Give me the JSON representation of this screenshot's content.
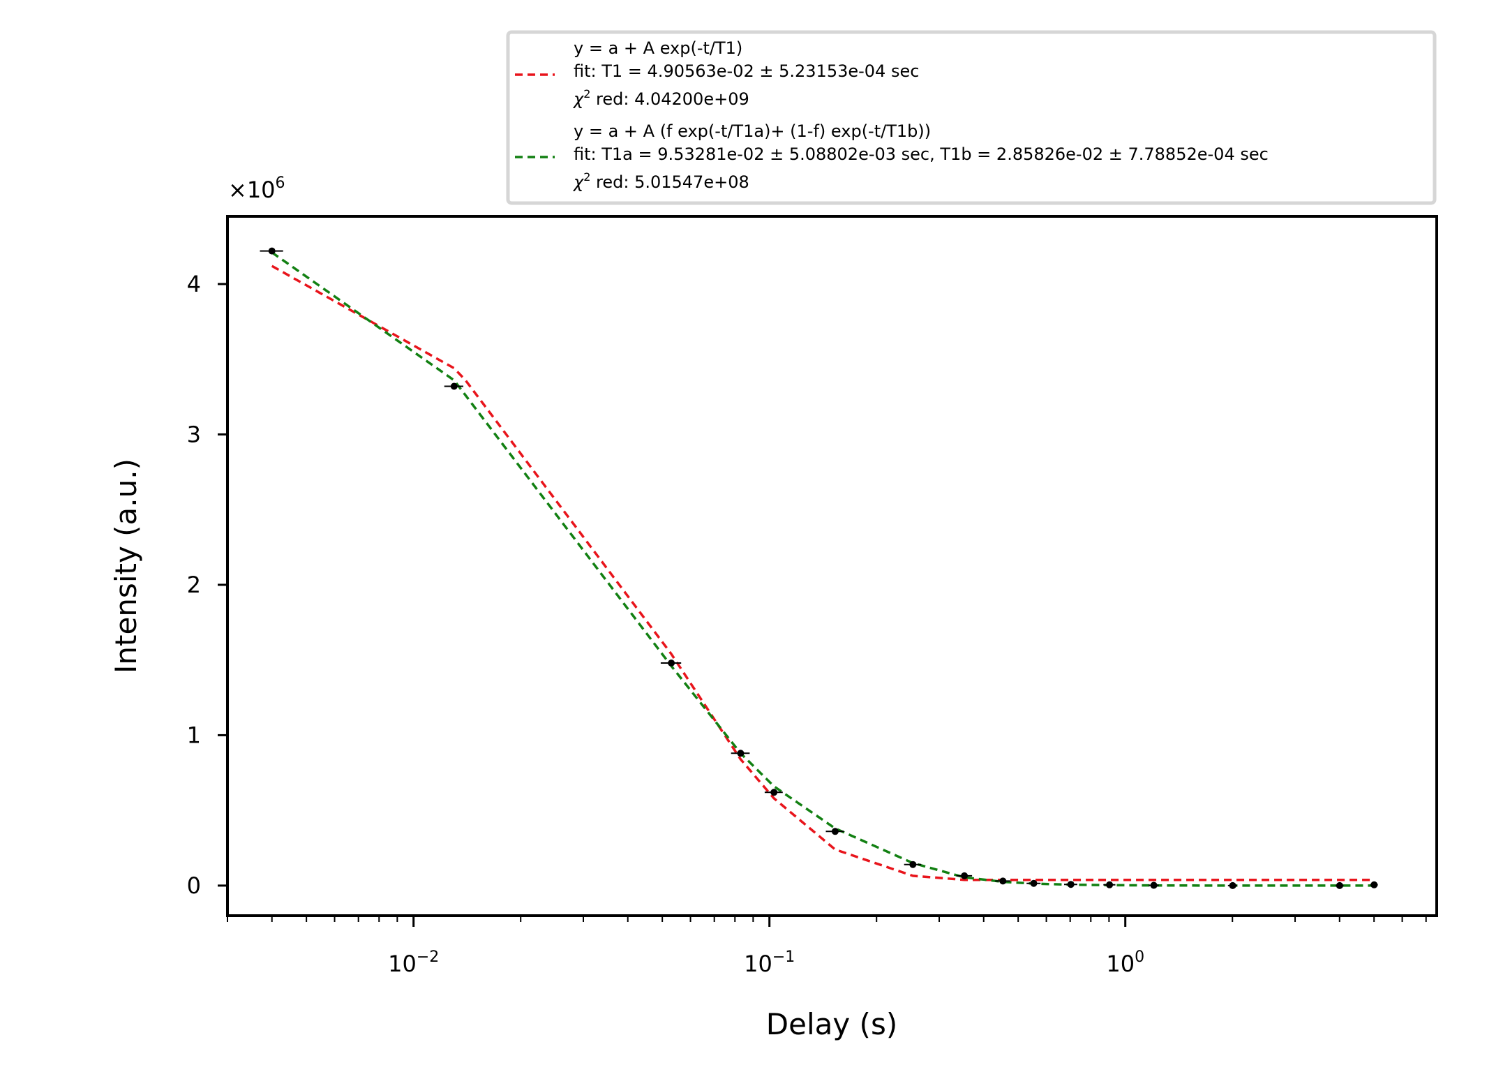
{
  "chart_data": {
    "type": "scatter",
    "xlabel": "Delay (s)",
    "ylabel": "Intensity (a.u.)",
    "x_scale": "log",
    "xlim": [
      0.003,
      7.5
    ],
    "ylim": [
      -0.2,
      4.45
    ],
    "y_multiplier_label": "×10",
    "y_multiplier_exp": "6",
    "y_ticks": [
      {
        "value": 0,
        "label": "0"
      },
      {
        "value": 1,
        "label": "1"
      },
      {
        "value": 2,
        "label": "2"
      },
      {
        "value": 3,
        "label": "3"
      },
      {
        "value": 4,
        "label": "4"
      }
    ],
    "x_ticks": [
      {
        "value": 0.01,
        "base": "10",
        "exp": "−2"
      },
      {
        "value": 0.1,
        "base": "10",
        "exp": "−1"
      },
      {
        "value": 1,
        "base": "10",
        "exp": "0"
      }
    ],
    "grid": false,
    "legend_position": "top-right, above the plot",
    "points": [
      {
        "x": 0.004,
        "y": 4.22,
        "xerr": 0.0003
      },
      {
        "x": 0.013,
        "y": 3.32,
        "xerr": 0.0008
      },
      {
        "x": 0.053,
        "y": 1.48,
        "xerr": 0.0035
      },
      {
        "x": 0.083,
        "y": 0.88,
        "xerr": 0.005
      },
      {
        "x": 0.103,
        "y": 0.62,
        "xerr": 0.006
      },
      {
        "x": 0.153,
        "y": 0.36,
        "xerr": 0.009
      },
      {
        "x": 0.253,
        "y": 0.14,
        "xerr": 0.014
      },
      {
        "x": 0.353,
        "y": 0.065,
        "xerr": 0.018
      },
      {
        "x": 0.453,
        "y": 0.03,
        "xerr": 0.022
      },
      {
        "x": 0.553,
        "y": 0.015,
        "xerr": 0.025
      },
      {
        "x": 0.703,
        "y": 0.008,
        "xerr": 0.03
      },
      {
        "x": 0.903,
        "y": 0.005,
        "xerr": 0.035
      },
      {
        "x": 1.203,
        "y": 0.002,
        "xerr": 0.04
      },
      {
        "x": 2.003,
        "y": 0.0,
        "xerr": 0.06
      },
      {
        "x": 4.003,
        "y": 0.0,
        "xerr": 0.1
      },
      {
        "x": 5.003,
        "y": 0.005,
        "xerr": 0.12
      }
    ],
    "series": [
      {
        "color": "#e8141b",
        "legend_lines": [
          "y = a + A exp(-t/T1)",
          "fit: T1 = 4.90563e-02 ± 5.23153e-04 sec"
        ],
        "legend_chi_label": "χ",
        "legend_chi_exp": "2",
        "legend_chi_value": " red: 4.04200e+09",
        "x": [
          0.004,
          0.013,
          0.014,
          0.053,
          0.083,
          0.103,
          0.153,
          0.253,
          0.353,
          0.453,
          0.553,
          0.703,
          0.903,
          1.203,
          2.003,
          4.003,
          5.003
        ],
        "y": [
          4.12,
          3.44,
          3.36,
          1.54,
          0.84,
          0.58,
          0.24,
          0.065,
          0.038,
          0.038,
          0.038,
          0.038,
          0.038,
          0.038,
          0.038,
          0.038,
          0.038
        ]
      },
      {
        "color": "#128012",
        "legend_lines": [
          "y = a + A (f exp(-t/T1a)+ (1-f) exp(-t/T1b))",
          "fit: T1a = 9.53281e-02 ± 5.08802e-03 sec, T1b = 2.85826e-02 ± 7.78852e-04 sec"
        ],
        "legend_chi_label": "χ",
        "legend_chi_exp": "2",
        "legend_chi_value": " red: 5.01547e+08",
        "x": [
          0.004,
          0.013,
          0.053,
          0.083,
          0.103,
          0.153,
          0.253,
          0.353,
          0.453,
          0.553,
          0.703,
          0.903,
          1.203,
          2.003,
          4.003,
          5.003
        ],
        "y": [
          4.21,
          3.36,
          1.46,
          0.88,
          0.66,
          0.38,
          0.15,
          0.055,
          0.025,
          0.013,
          0.006,
          0.003,
          0.001,
          0.0,
          0.0,
          0.0
        ]
      }
    ]
  }
}
